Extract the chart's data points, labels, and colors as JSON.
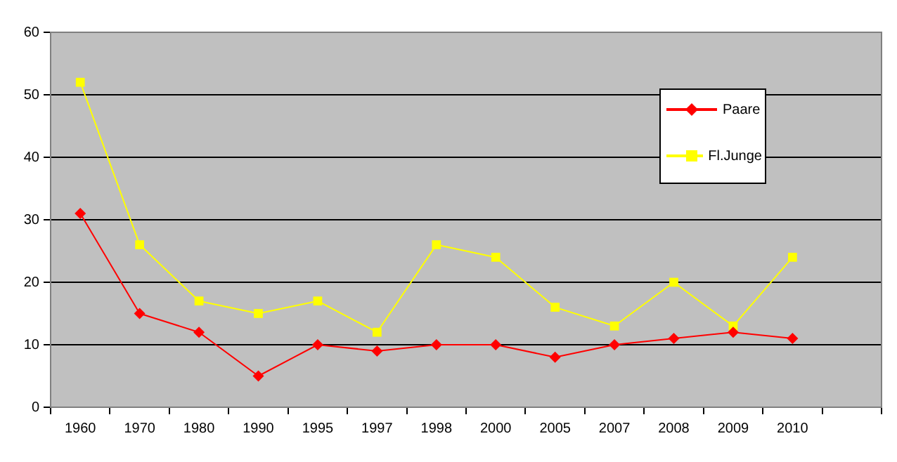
{
  "chart_data": {
    "type": "line",
    "categories": [
      "1960",
      "1970",
      "1980",
      "1990",
      "1995",
      "1997",
      "1998",
      "2000",
      "2005",
      "2007",
      "2008",
      "2009",
      "2010",
      null
    ],
    "series": [
      {
        "name": "Paare",
        "color": "#ff0000",
        "marker": "diamond",
        "values": [
          31,
          15,
          12,
          5,
          10,
          9,
          10,
          10,
          8,
          10,
          11,
          12,
          11,
          null
        ]
      },
      {
        "name": "Fl.Junge",
        "color": "#ffff00",
        "marker": "square",
        "values": [
          52,
          26,
          17,
          15,
          17,
          12,
          26,
          24,
          16,
          13,
          20,
          13,
          24,
          null
        ]
      }
    ],
    "ylim": [
      0,
      60
    ],
    "yticks": [
      0,
      10,
      20,
      30,
      40,
      50,
      60
    ],
    "grid": "y",
    "legend": "top right"
  }
}
